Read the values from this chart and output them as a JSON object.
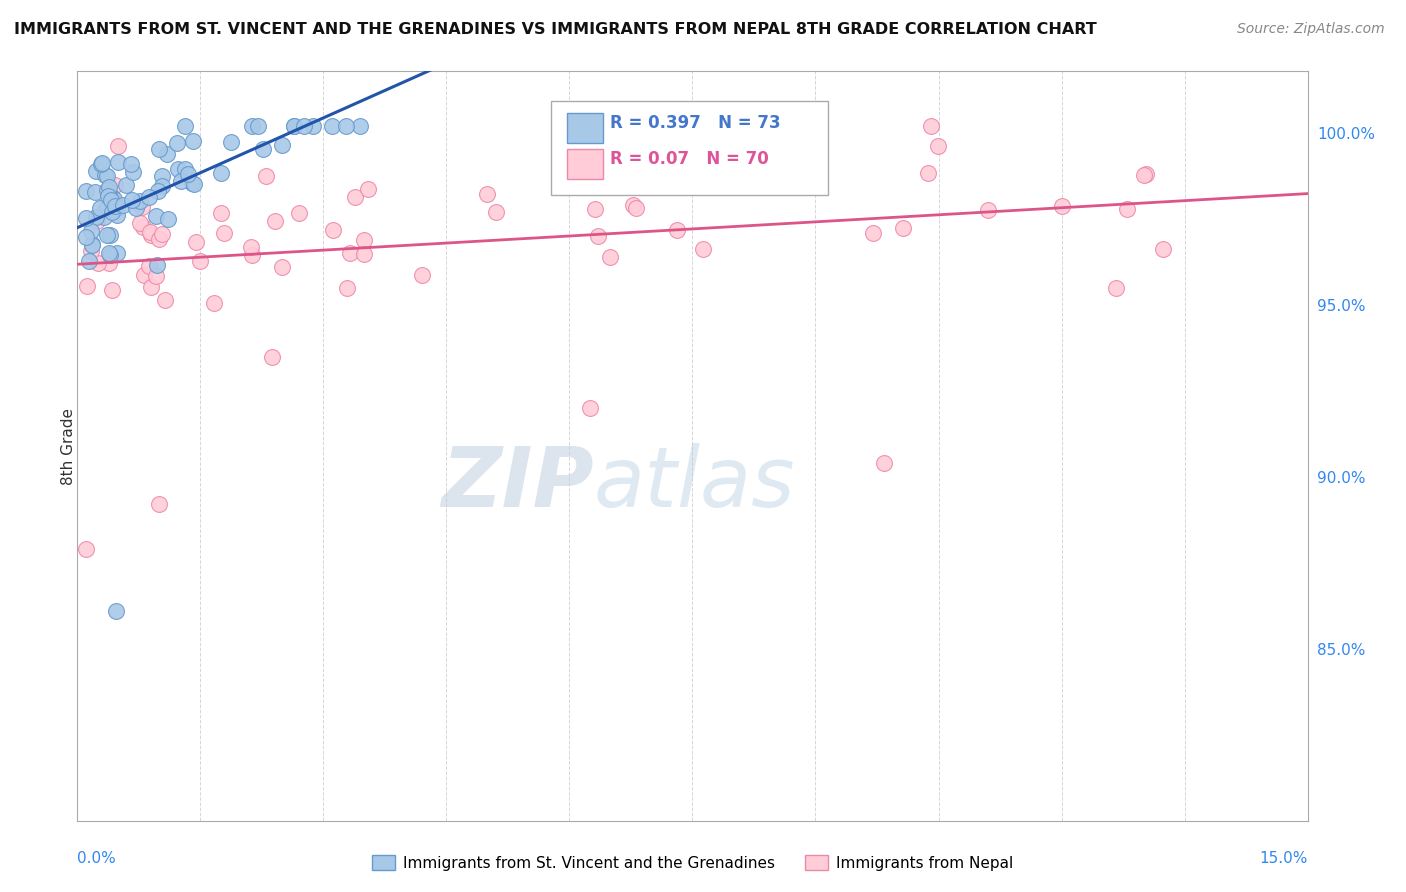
{
  "title": "IMMIGRANTS FROM ST. VINCENT AND THE GRENADINES VS IMMIGRANTS FROM NEPAL 8TH GRADE CORRELATION CHART",
  "source": "Source: ZipAtlas.com",
  "ylabel": "8th Grade",
  "ylabel_right_values": [
    1.0,
    0.95,
    0.9,
    0.85
  ],
  "xlim": [
    0.0,
    0.15
  ],
  "ylim": [
    0.8,
    1.018
  ],
  "series1_label": "Immigrants from St. Vincent and the Grenadines",
  "series1_R": 0.397,
  "series1_N": 73,
  "series1_color": "#a8c8e8",
  "series1_edge": "#6699cc",
  "series2_label": "Immigrants from Nepal",
  "series2_R": 0.07,
  "series2_N": 70,
  "series2_color": "#ffccd8",
  "series2_edge": "#ee88aa",
  "trendline1_color": "#2255aa",
  "trendline2_color": "#dd5588",
  "legend_R1_color": "#4477cc",
  "legend_R2_color": "#dd5599",
  "watermark_zip": "ZIP",
  "watermark_atlas": "atlas",
  "background_color": "#ffffff",
  "grid_color": "#cccccc",
  "seed": 12345
}
